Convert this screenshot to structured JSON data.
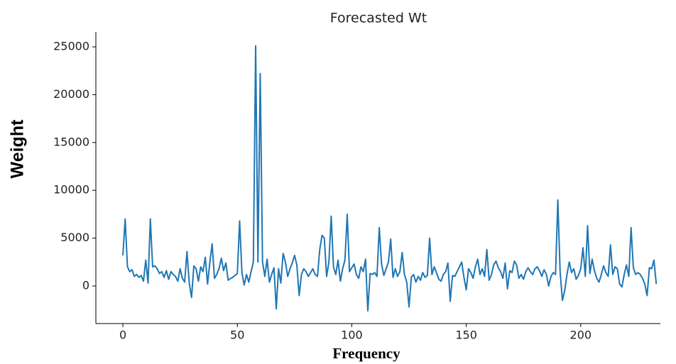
{
  "chart_data": {
    "type": "line",
    "title": "Forecasted Wt",
    "xlabel": "Frequency",
    "ylabel": "Weight",
    "color": "#1f77b4",
    "xlim": [
      -11.8,
      234.8
    ],
    "ylim": [
      -3930,
      26560
    ],
    "xticks": [
      0,
      50,
      100,
      150,
      200
    ],
    "yticks": [
      0,
      5000,
      10000,
      15000,
      20000,
      25000
    ],
    "x": [
      0,
      1,
      2,
      3,
      4,
      5,
      6,
      7,
      8,
      9,
      10,
      11,
      12,
      13,
      14,
      15,
      16,
      17,
      18,
      19,
      20,
      21,
      22,
      23,
      24,
      25,
      26,
      27,
      28,
      29,
      30,
      31,
      32,
      33,
      34,
      35,
      36,
      37,
      38,
      39,
      40,
      41,
      42,
      43,
      44,
      45,
      46,
      47,
      48,
      49,
      50,
      51,
      52,
      53,
      54,
      55,
      56,
      57,
      58,
      59,
      60,
      61,
      62,
      63,
      64,
      65,
      66,
      67,
      68,
      69,
      70,
      71,
      72,
      73,
      74,
      75,
      76,
      77,
      78,
      79,
      80,
      81,
      82,
      83,
      84,
      85,
      86,
      87,
      88,
      89,
      90,
      91,
      92,
      93,
      94,
      95,
      96,
      97,
      98,
      99,
      100,
      101,
      102,
      103,
      104,
      105,
      106,
      107,
      108,
      109,
      110,
      111,
      112,
      113,
      114,
      115,
      116,
      117,
      118,
      119,
      120,
      121,
      122,
      123,
      124,
      125,
      126,
      127,
      128,
      129,
      130,
      131,
      132,
      133,
      134,
      135,
      136,
      137,
      138,
      139,
      140,
      141,
      142,
      143,
      144,
      145,
      146,
      147,
      148,
      149,
      150,
      151,
      152,
      153,
      154,
      155,
      156,
      157,
      158,
      159,
      160,
      161,
      162,
      163,
      164,
      165,
      166,
      167,
      168,
      169,
      170,
      171,
      172,
      173,
      174,
      175,
      176,
      177,
      178,
      179,
      180,
      181,
      182,
      183,
      184,
      185,
      186,
      187,
      188,
      189,
      190,
      191,
      192,
      193,
      194,
      195,
      196,
      197,
      198,
      199,
      200,
      201,
      202,
      203,
      204,
      205,
      206,
      207,
      208,
      209,
      210,
      211,
      212,
      213,
      214,
      215,
      216,
      217,
      218,
      219,
      220,
      221,
      222,
      223,
      224,
      225,
      226,
      227,
      228,
      229,
      230,
      231,
      232,
      233
    ],
    "values": [
      3200,
      7000,
      2000,
      1500,
      1700,
      1000,
      1200,
      900,
      1100,
      500,
      2700,
      300,
      7000,
      2000,
      2100,
      1800,
      1300,
      1500,
      900,
      1600,
      700,
      1500,
      1200,
      1000,
      500,
      1800,
      800,
      400,
      3600,
      300,
      -1200,
      2100,
      1800,
      500,
      2000,
      1500,
      3000,
      200,
      2500,
      4400,
      800,
      1200,
      1800,
      2900,
      1600,
      2400,
      600,
      800,
      900,
      1100,
      1300,
      6800,
      1400,
      100,
      1200,
      400,
      1500,
      2500,
      25100,
      2500,
      22200,
      2500,
      1000,
      2800,
      400,
      1200,
      1900,
      -2400,
      1800,
      300,
      3400,
      2500,
      1000,
      1800,
      2400,
      3200,
      2200,
      -1000,
      1200,
      1800,
      1500,
      1000,
      1400,
      1800,
      1200,
      1000,
      3800,
      5300,
      5000,
      1000,
      2500,
      7300,
      2000,
      1200,
      2700,
      500,
      1800,
      2700,
      7500,
      1500,
      1900,
      2300,
      1200,
      800,
      2000,
      1500,
      2800,
      -2600,
      1300,
      1200,
      1400,
      1000,
      6100,
      2300,
      1100,
      1800,
      2500,
      4900,
      900,
      1800,
      1000,
      1500,
      3500,
      1200,
      400,
      -2200,
      900,
      1200,
      400,
      1000,
      600,
      1400,
      900,
      1100,
      5000,
      1200,
      2000,
      1400,
      700,
      500,
      1200,
      1500,
      2400,
      -1600,
      1100,
      1000,
      1500,
      2000,
      2500,
      900,
      -400,
      1800,
      1400,
      800,
      2000,
      2800,
      1200,
      1800,
      1000,
      3800,
      600,
      1200,
      2200,
      2600,
      1900,
      1500,
      800,
      2400,
      -300,
      1600,
      1400,
      2600,
      2200,
      800,
      1200,
      700,
      1500,
      1900,
      1500,
      1200,
      1800,
      2000,
      1600,
      1000,
      1700,
      1200,
      0,
      1000,
      1400,
      1200,
      9000,
      1500,
      -1500,
      -500,
      1200,
      2500,
      1400,
      1800,
      700,
      1100,
      1800,
      4000,
      1000,
      6300,
      1300,
      2800,
      1600,
      800,
      400,
      1200,
      2100,
      1400,
      1000,
      4300,
      1200,
      2000,
      1800,
      200,
      -100,
      1200,
      2200,
      1000,
      6100,
      1900,
      1200,
      1400,
      1200,
      800,
      200,
      -1000,
      1900,
      1800,
      2700,
      200
    ]
  }
}
